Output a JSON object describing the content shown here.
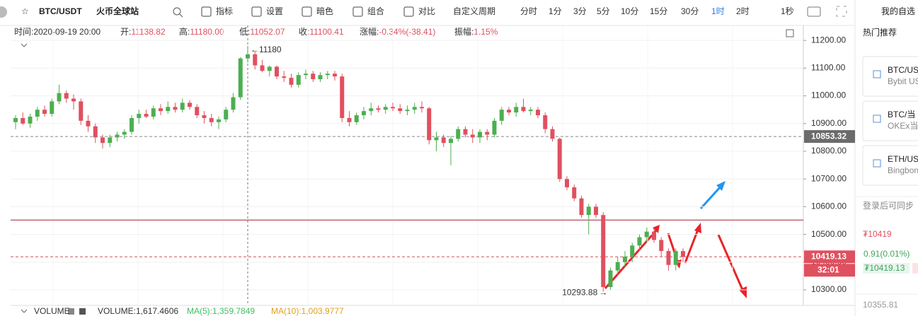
{
  "toolbar": {
    "symbol": "BTC/USDT",
    "exchange": "火币全球站",
    "items": [
      "指标",
      "设置",
      "暗色",
      "组合",
      "对比"
    ],
    "periods": [
      "自定义周期",
      "分时",
      "1分",
      "3分",
      "5分",
      "10分",
      "15分",
      "30分",
      "1时",
      "2时"
    ],
    "active_period": "1时",
    "speed": "1秒"
  },
  "info": [
    "时间:2020-09-19 20:00",
    {
      "label": "开:",
      "value": "11138.82"
    },
    {
      "label": "高:",
      "value": "11180.00"
    },
    {
      "label": "低:",
      "value": "11052.07"
    },
    {
      "label": "收:",
      "value": "11100.41"
    },
    {
      "label": "涨幅:",
      "value": "-0.34%(-38.41)"
    },
    {
      "label": "振幅:",
      "value": "1.15%"
    }
  ],
  "chart": {
    "type": "candlestick",
    "up_color": "#4caf50",
    "down_color": "#e0505f",
    "ylim": [
      10249,
      11254
    ],
    "yticks": [
      {
        "value": 11200,
        "label": "11200.00"
      },
      {
        "value": 11100,
        "label": "11100.00"
      },
      {
        "value": 11000,
        "label": "11000.00"
      },
      {
        "value": 10900,
        "label": "10900.00"
      },
      {
        "value": 10800,
        "label": "10800.00"
      },
      {
        "value": 10700,
        "label": "10700.00"
      },
      {
        "value": 10600,
        "label": "10600.00"
      },
      {
        "value": 10500,
        "label": "10500.00"
      },
      {
        "value": 10400,
        "label": "10400.00"
      },
      {
        "value": 10300,
        "label": "10300.00"
      }
    ],
    "max": 11180,
    "min": 10293.88,
    "levels": [
      {
        "value": 10853.32,
        "label": "10853.32",
        "style": "dashed",
        "color": "#888888"
      },
      {
        "value": 10552,
        "style": "solid",
        "color": "#9b2335"
      },
      {
        "value": 10419.13,
        "label": "10419.13",
        "style": "dashed",
        "color": "#d0505f"
      }
    ],
    "countdown": "32:01",
    "candles": [
      [
        10905,
        10930,
        10880,
        10920
      ],
      [
        10920,
        10940,
        10895,
        10900
      ],
      [
        10900,
        10935,
        10885,
        10925
      ],
      [
        10925,
        10960,
        10910,
        10950
      ],
      [
        10950,
        10965,
        10925,
        10935
      ],
      [
        10935,
        10990,
        10925,
        10980
      ],
      [
        10980,
        11040,
        10970,
        11010
      ],
      [
        11010,
        11020,
        10975,
        10990
      ],
      [
        10990,
        11005,
        10950,
        10980
      ],
      [
        10980,
        10990,
        10895,
        10910
      ],
      [
        10910,
        10930,
        10870,
        10890
      ],
      [
        10890,
        10900,
        10830,
        10850
      ],
      [
        10850,
        10860,
        10810,
        10830
      ],
      [
        10830,
        10860,
        10815,
        10850
      ],
      [
        10850,
        10870,
        10835,
        10860
      ],
      [
        10860,
        10880,
        10845,
        10870
      ],
      [
        10870,
        10930,
        10860,
        10920
      ],
      [
        10920,
        10950,
        10900,
        10935
      ],
      [
        10935,
        10950,
        10920,
        10925
      ],
      [
        10925,
        10965,
        10915,
        10955
      ],
      [
        10955,
        10970,
        10930,
        10945
      ],
      [
        10945,
        10980,
        10935,
        10960
      ],
      [
        10960,
        10975,
        10940,
        10950
      ],
      [
        10950,
        10990,
        10940,
        10975
      ],
      [
        10975,
        10985,
        10950,
        10960
      ],
      [
        10960,
        10970,
        10920,
        10930
      ],
      [
        10930,
        10945,
        10900,
        10920
      ],
      [
        10920,
        10935,
        10890,
        10905
      ],
      [
        10905,
        10925,
        10880,
        10915
      ],
      [
        10915,
        10960,
        10905,
        10950
      ],
      [
        10950,
        11010,
        10940,
        10995
      ],
      [
        10995,
        11140,
        10985,
        11135
      ],
      [
        11135,
        11180,
        11120,
        11150
      ],
      [
        11150,
        11160,
        11095,
        11110
      ],
      [
        11110,
        11130,
        11085,
        11090
      ],
      [
        11090,
        11110,
        11070,
        11105
      ],
      [
        11105,
        11110,
        11060,
        11070
      ],
      [
        11070,
        11090,
        11050,
        11065
      ],
      [
        11065,
        11080,
        11030,
        11040
      ],
      [
        11040,
        11085,
        11030,
        11075
      ],
      [
        11075,
        11095,
        11060,
        11080
      ],
      [
        11080,
        11090,
        11050,
        11060
      ],
      [
        11060,
        11085,
        11050,
        11075
      ],
      [
        11075,
        11090,
        11060,
        11080
      ],
      [
        11080,
        11090,
        11055,
        11070
      ],
      [
        11070,
        11080,
        10905,
        10920
      ],
      [
        10920,
        10945,
        10890,
        10905
      ],
      [
        10905,
        10940,
        10895,
        10930
      ],
      [
        10930,
        10960,
        10915,
        10945
      ],
      [
        10945,
        10975,
        10930,
        10955
      ],
      [
        10955,
        10965,
        10940,
        10950
      ],
      [
        10950,
        10970,
        10935,
        10960
      ],
      [
        10960,
        10975,
        10945,
        10955
      ],
      [
        10955,
        10970,
        10935,
        10945
      ],
      [
        10945,
        10965,
        10930,
        10950
      ],
      [
        10950,
        10975,
        10935,
        10960
      ],
      [
        10960,
        10980,
        10940,
        10955
      ],
      [
        10955,
        10960,
        10825,
        10840
      ],
      [
        10840,
        10870,
        10800,
        10850
      ],
      [
        10850,
        10860,
        10815,
        10830
      ],
      [
        10830,
        10855,
        10750,
        10845
      ],
      [
        10845,
        10890,
        10835,
        10880
      ],
      [
        10880,
        10890,
        10850,
        10860
      ],
      [
        10860,
        10880,
        10830,
        10850
      ],
      [
        10850,
        10880,
        10830,
        10870
      ],
      [
        10870,
        10880,
        10840,
        10860
      ],
      [
        10860,
        10920,
        10850,
        10910
      ],
      [
        10910,
        10960,
        10895,
        10950
      ],
      [
        10950,
        10960,
        10930,
        10940
      ],
      [
        10940,
        10975,
        10925,
        10960
      ],
      [
        10960,
        10990,
        10940,
        10945
      ],
      [
        10945,
        10960,
        10930,
        10950
      ],
      [
        10950,
        10960,
        10920,
        10930
      ],
      [
        10930,
        10940,
        10865,
        10880
      ],
      [
        10880,
        10890,
        10835,
        10845
      ],
      [
        10845,
        10850,
        10690,
        10700
      ],
      [
        10700,
        10710,
        10660,
        10670
      ],
      [
        10670,
        10680,
        10620,
        10630
      ],
      [
        10630,
        10640,
        10560,
        10570
      ],
      [
        10570,
        10610,
        10500,
        10600
      ],
      [
        10600,
        10610,
        10560,
        10570
      ],
      [
        10570,
        10580,
        10293.88,
        10310
      ],
      [
        10310,
        10380,
        10300,
        10370
      ],
      [
        10370,
        10420,
        10350,
        10400
      ],
      [
        10400,
        10440,
        10380,
        10420
      ],
      [
        10420,
        10470,
        10400,
        10460
      ],
      [
        10460,
        10500,
        10440,
        10490
      ],
      [
        10490,
        10525,
        10470,
        10510
      ],
      [
        10510,
        10520,
        10470,
        10480
      ],
      [
        10480,
        10490,
        10420,
        10440
      ],
      [
        10440,
        10450,
        10370,
        10390
      ],
      [
        10390,
        10450,
        10370,
        10440
      ],
      [
        10440,
        10450,
        10400,
        10419.13
      ]
    ]
  },
  "volume": {
    "title": "VOLUME",
    "value": "VOLUME:1,617.4606",
    "ma5": "MA(5):1,359.7849",
    "ma10": "MA(10):1,003.9777"
  },
  "sidebar": {
    "title": "我的自选",
    "section": "热门推荐",
    "cards": [
      {
        "pair": "BTC/US",
        "exchange": "Bybit US"
      },
      {
        "pair": "BTC/当",
        "exchange": "OKEx当"
      },
      {
        "pair": "ETH/US",
        "exchange": "Bingbon"
      }
    ],
    "login_hint": "登录后可同步",
    "price": "₮10419",
    "change": "0.91(0.01%)",
    "price_small": "₮10419.13",
    "extra": "10355.81"
  }
}
